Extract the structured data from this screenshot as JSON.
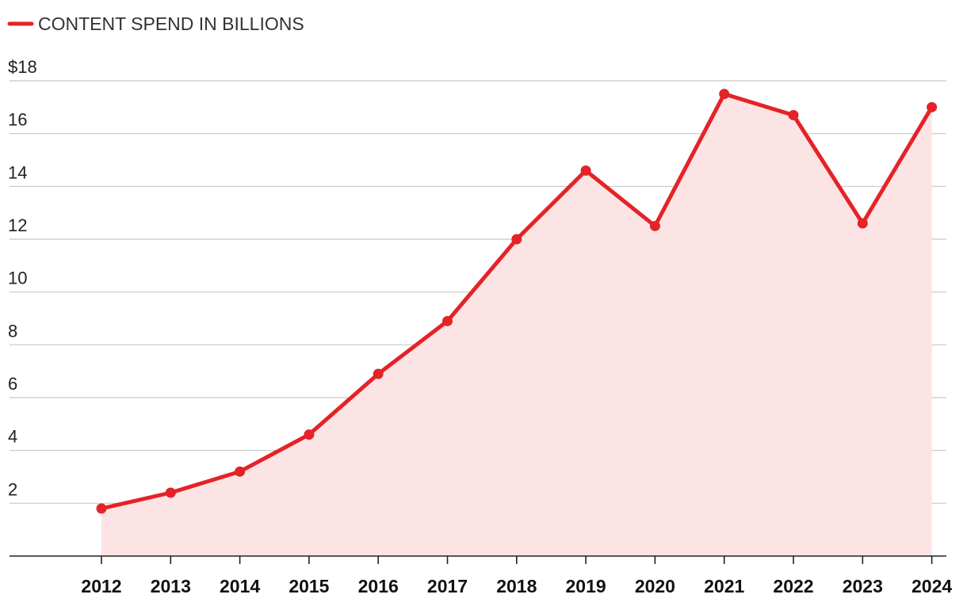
{
  "chart_data": {
    "type": "line",
    "title": "",
    "xlabel": "",
    "ylabel": "",
    "legend": [
      {
        "label": "CONTENT SPEND IN BILLIONS"
      }
    ],
    "categories": [
      "2012",
      "2013",
      "2014",
      "2015",
      "2016",
      "2017",
      "2018",
      "2019",
      "2020",
      "2021",
      "2022",
      "2023",
      "2024"
    ],
    "series": [
      {
        "name": "CONTENT SPEND IN BILLIONS",
        "values": [
          1.8,
          2.4,
          3.2,
          4.6,
          6.9,
          8.9,
          12.0,
          14.6,
          12.5,
          17.5,
          16.7,
          12.6,
          17.0
        ]
      }
    ],
    "ylim": [
      0,
      18
    ],
    "yticks": [
      {
        "value": 2,
        "label": "2"
      },
      {
        "value": 4,
        "label": "4"
      },
      {
        "value": 6,
        "label": "6"
      },
      {
        "value": 8,
        "label": "8"
      },
      {
        "value": 10,
        "label": "10"
      },
      {
        "value": 12,
        "label": "12"
      },
      {
        "value": 14,
        "label": "14"
      },
      {
        "value": 16,
        "label": "16"
      },
      {
        "value": 18,
        "label": "$18"
      }
    ],
    "grid": true,
    "legend_position": "top-left",
    "colors": {
      "line": "#e42328",
      "area": "#fce4e5"
    }
  }
}
